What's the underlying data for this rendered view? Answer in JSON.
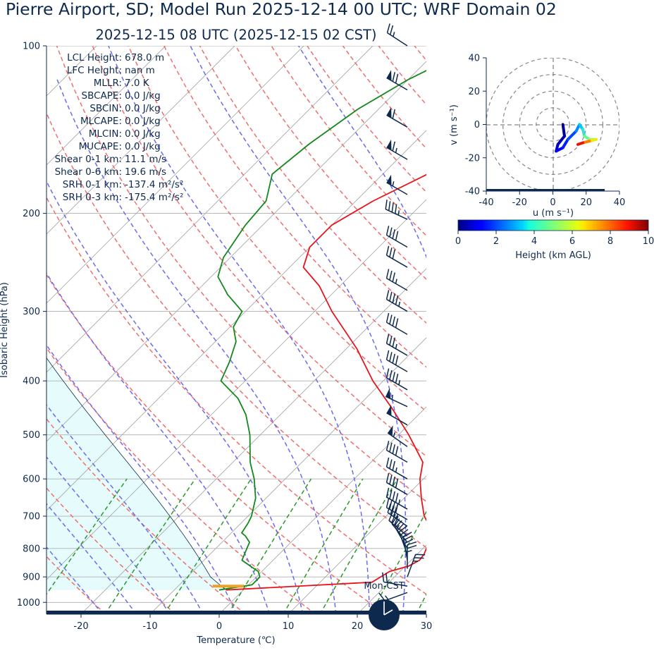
{
  "title": "Pierre Airport, SD; Model Run 2025-12-14 00 UTC; WRF Domain 02",
  "subtitle": "2025-12-15 08 UTC  (2025-12-15 02 CST)",
  "clock_label": "Mon-CST",
  "colors": {
    "text": "#0d2a4e",
    "temperature": "#e8141c",
    "dewpoint": "#12891a",
    "parcel_fill": "#e6fcfc",
    "dry_adiabat": "#ef6f6f",
    "moist_adiabat": "#6b6bf0",
    "mixing_ratio": "#2a9a2a",
    "isotherm": "#a8a8a8",
    "barb": "#0d2a4e",
    "surface_marker": "#f0a020"
  },
  "stats": [
    {
      "label": "LCL Height:",
      "value": "678.0 m"
    },
    {
      "label": "LFC Height:",
      "value": "nan m"
    },
    {
      "label": "MLLR:",
      "value": "7.0 K"
    },
    {
      "label": "SBCAPE:",
      "value": "0.0 J/kg"
    },
    {
      "label": "SBCIN:",
      "value": "0.0 J/kg"
    },
    {
      "label": "MLCAPE:",
      "value": "0.0 J/kg"
    },
    {
      "label": "MLCIN:",
      "value": "0.0 J/kg"
    },
    {
      "label": "MUCAPE:",
      "value": "0.0 J/kg"
    },
    {
      "label": "Shear 0-1 km:",
      "value": "11.1 m/s"
    },
    {
      "label": "Shear 0-6 km:",
      "value": "19.6 m/s"
    },
    {
      "label": "SRH 0-1 km:",
      "value": "-137.4 m²/s²"
    },
    {
      "label": "SRH 0-3 km:",
      "value": "-175.4 m²/s²"
    }
  ],
  "chart_data": [
    {
      "type": "line",
      "chart": "skew-t",
      "xlabel": "Temperature (℃)",
      "ylabel": "Isobaric Height (hPa)",
      "xlim": [
        -25,
        30
      ],
      "ylim": [
        1050,
        100
      ],
      "log_y": true,
      "skew_deg": 45,
      "xticks": [
        -20,
        -10,
        0,
        10,
        20,
        30
      ],
      "yticks": [
        100,
        200,
        300,
        400,
        500,
        600,
        700,
        800,
        900,
        1000
      ],
      "grid": true,
      "series": [
        {
          "role": "temperature",
          "p": [
            950,
            920,
            880,
            860,
            840,
            820,
            800,
            760,
            700,
            650,
            600,
            560,
            500,
            450,
            400,
            350,
            300,
            270,
            250,
            230,
            210,
            190,
            170,
            150,
            135,
            120,
            110,
            100
          ],
          "t": [
            -2.5,
            17.5,
            18.5,
            20.5,
            21.2,
            21.0,
            20.5,
            20.0,
            15.5,
            12.5,
            9.5,
            7.5,
            1.5,
            -4.5,
            -11.5,
            -18.5,
            -27.5,
            -33.0,
            -38.0,
            -40.0,
            -40.0,
            -37.5,
            -33.5,
            -25.5,
            -20.0,
            -17.5,
            -19.0,
            -21.0
          ]
        },
        {
          "role": "dewpoint",
          "p": [
            950,
            930,
            900,
            880,
            860,
            840,
            800,
            780,
            760,
            750,
            720,
            700,
            650,
            600,
            560,
            500,
            460,
            430,
            400,
            370,
            340,
            320,
            300,
            280,
            260,
            240,
            210,
            190,
            170,
            150,
            130,
            115,
            100
          ],
          "t": [
            -3.5,
            0.5,
            0.5,
            -0.5,
            -2.5,
            -4.5,
            -5.5,
            -6.0,
            -7.5,
            -8.5,
            -9.0,
            -9.5,
            -11.5,
            -14.5,
            -17.5,
            -21.5,
            -25.0,
            -28.5,
            -33.5,
            -35.0,
            -37.0,
            -39.5,
            -40.5,
            -45.0,
            -49.0,
            -51.0,
            -52.5,
            -53.0,
            -56.0,
            -55.0,
            -53.0,
            -50.0,
            -45.0
          ]
        }
      ],
      "surface_marker": {
        "p": 935,
        "t_from": -5,
        "t_to": -0.5
      }
    },
    {
      "type": "line",
      "chart": "hodograph",
      "xlabel": "u (m s⁻¹)",
      "ylabel": "v (m s⁻¹)",
      "xlim": [
        -40,
        40
      ],
      "ylim": [
        -40,
        40
      ],
      "xticks": [
        -40,
        -20,
        0,
        20,
        40
      ],
      "yticks": [
        -40,
        -20,
        0,
        20,
        40
      ],
      "rings": [
        10,
        20,
        30,
        40
      ],
      "colorbar": {
        "label": "Height (km AGL)",
        "min": 0,
        "max": 10,
        "ticks": [
          0,
          2,
          4,
          6,
          8,
          10
        ]
      },
      "points": [
        {
          "u": 6,
          "v": 0,
          "h": 0.1
        },
        {
          "u": 7,
          "v": -7,
          "h": 0.3
        },
        {
          "u": 3,
          "v": -12,
          "h": 0.5
        },
        {
          "u": 2,
          "v": -16,
          "h": 0.8
        },
        {
          "u": 6,
          "v": -14,
          "h": 1.2
        },
        {
          "u": 9,
          "v": -9,
          "h": 1.6
        },
        {
          "u": 14,
          "v": -4,
          "h": 2.2
        },
        {
          "u": 16,
          "v": 0,
          "h": 3.0
        },
        {
          "u": 18,
          "v": -3,
          "h": 3.6
        },
        {
          "u": 19,
          "v": -7,
          "h": 4.4
        },
        {
          "u": 22,
          "v": -9,
          "h": 5.0
        },
        {
          "u": 26,
          "v": -9,
          "h": 5.8
        },
        {
          "u": 22,
          "v": -10,
          "h": 7.0
        },
        {
          "u": 18,
          "v": -11,
          "h": 8.5
        },
        {
          "u": 15,
          "v": -12,
          "h": 9.6
        }
      ]
    }
  ],
  "wind_barbs": [
    {
      "p": 100,
      "dir": 303,
      "speed_kt": 25
    },
    {
      "p": 120,
      "dir": 300,
      "speed_kt": 70
    },
    {
      "p": 140,
      "dir": 300,
      "speed_kt": 60
    },
    {
      "p": 160,
      "dir": 300,
      "speed_kt": 65
    },
    {
      "p": 185,
      "dir": 300,
      "speed_kt": 55
    },
    {
      "p": 205,
      "dir": 295,
      "speed_kt": 45
    },
    {
      "p": 230,
      "dir": 300,
      "speed_kt": 40
    },
    {
      "p": 250,
      "dir": 300,
      "speed_kt": 30
    },
    {
      "p": 275,
      "dir": 300,
      "speed_kt": 35
    },
    {
      "p": 300,
      "dir": 300,
      "speed_kt": 45
    },
    {
      "p": 330,
      "dir": 300,
      "speed_kt": 40
    },
    {
      "p": 360,
      "dir": 300,
      "speed_kt": 35
    },
    {
      "p": 385,
      "dir": 300,
      "speed_kt": 40
    },
    {
      "p": 415,
      "dir": 300,
      "speed_kt": 45
    },
    {
      "p": 445,
      "dir": 295,
      "speed_kt": 55
    },
    {
      "p": 480,
      "dir": 300,
      "speed_kt": 50
    },
    {
      "p": 525,
      "dir": 305,
      "speed_kt": 55
    },
    {
      "p": 560,
      "dir": 300,
      "speed_kt": 40
    },
    {
      "p": 600,
      "dir": 300,
      "speed_kt": 35
    },
    {
      "p": 640,
      "dir": 300,
      "speed_kt": 40
    },
    {
      "p": 680,
      "dir": 300,
      "speed_kt": 45
    },
    {
      "p": 710,
      "dir": 300,
      "speed_kt": 40
    },
    {
      "p": 730,
      "dir": 305,
      "speed_kt": 35
    },
    {
      "p": 760,
      "dir": 310,
      "speed_kt": 30
    },
    {
      "p": 780,
      "dir": 320,
      "speed_kt": 25
    },
    {
      "p": 800,
      "dir": 330,
      "speed_kt": 20
    },
    {
      "p": 820,
      "dir": 340,
      "speed_kt": 25
    },
    {
      "p": 840,
      "dir": 350,
      "speed_kt": 30
    },
    {
      "p": 870,
      "dir": 0,
      "speed_kt": 25
    },
    {
      "p": 900,
      "dir": 20,
      "speed_kt": 25
    },
    {
      "p": 935,
      "dir": 280,
      "speed_kt": 20
    },
    {
      "p": 960,
      "dir": 250,
      "speed_kt": 15
    }
  ]
}
